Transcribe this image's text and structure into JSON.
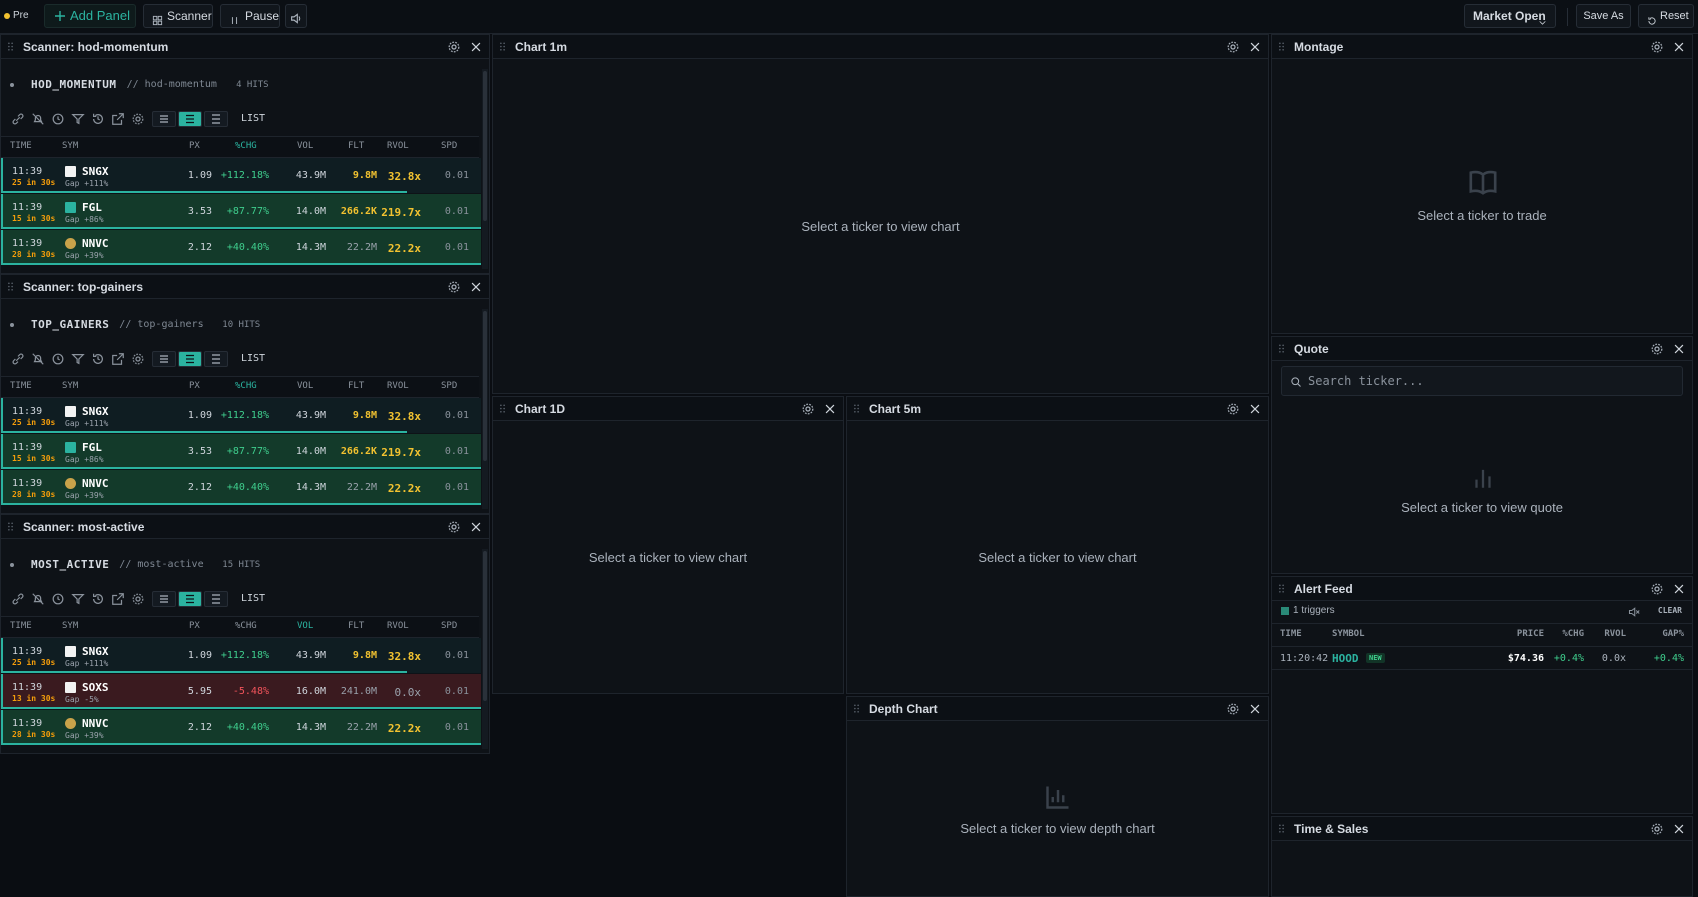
{
  "toolbar": {
    "status": "Pre",
    "add_panel": "Add Panel",
    "scanner": "Scanner",
    "pause": "Pause",
    "market": "Market Open",
    "save_as": "Save As",
    "reset": "Reset"
  },
  "scanners": [
    {
      "title": "Scanner: hod-momentum",
      "name": "HOD_MOMENTUM",
      "slug": "// hod-momentum",
      "hits": "4 HITS",
      "view": "LIST",
      "sort_index": 3,
      "columns": [
        "TIME",
        "SYM",
        "PX",
        "%CHG",
        "VOL",
        "FLT",
        "RVOL",
        "SPD"
      ],
      "rows": [
        {
          "tone": "new",
          "time": "11:39",
          "alert": "25 in 30s",
          "sym": "SNGX",
          "sub": "Gap +111%",
          "cells": [
            "1.09",
            "+112.18%",
            "43.9M",
            "9.8M",
            "32.8x",
            "0.01"
          ]
        },
        {
          "tone": "up",
          "time": "11:39",
          "alert": "15 in 30s",
          "sym": "FGL",
          "sub": "Gap +86%",
          "cells": [
            "3.53",
            "+87.77%",
            "14.0M",
            "266.2K",
            "219.7x",
            "0.01"
          ]
        },
        {
          "tone": "up",
          "time": "11:39",
          "alert": "28 in 30s",
          "sym": "NNVC",
          "sub": "Gap +39%",
          "cells": [
            "2.12",
            "+40.40%",
            "14.3M",
            "22.2M",
            "22.2x",
            "0.01"
          ]
        }
      ]
    },
    {
      "title": "Scanner: top-gainers",
      "name": "TOP_GAINERS",
      "slug": "// top-gainers",
      "hits": "10 HITS",
      "view": "LIST",
      "sort_index": 3,
      "columns": [
        "TIME",
        "SYM",
        "PX",
        "%CHG",
        "VOL",
        "FLT",
        "RVOL",
        "SPD"
      ],
      "rows": [
        {
          "tone": "new",
          "time": "11:39",
          "alert": "25 in 30s",
          "sym": "SNGX",
          "sub": "Gap +111%",
          "cells": [
            "1.09",
            "+112.18%",
            "43.9M",
            "9.8M",
            "32.8x",
            "0.01"
          ]
        },
        {
          "tone": "up",
          "time": "11:39",
          "alert": "15 in 30s",
          "sym": "FGL",
          "sub": "Gap +86%",
          "cells": [
            "3.53",
            "+87.77%",
            "14.0M",
            "266.2K",
            "219.7x",
            "0.01"
          ]
        },
        {
          "tone": "up",
          "time": "11:39",
          "alert": "28 in 30s",
          "sym": "NNVC",
          "sub": "Gap +39%",
          "cells": [
            "2.12",
            "+40.40%",
            "14.3M",
            "22.2M",
            "22.2x",
            "0.01"
          ]
        }
      ]
    },
    {
      "title": "Scanner: most-active",
      "name": "MOST_ACTIVE",
      "slug": "// most-active",
      "hits": "15 HITS",
      "view": "LIST",
      "sort_index": 4,
      "columns": [
        "TIME",
        "SYM",
        "PX",
        "%CHG",
        "VOL",
        "FLT",
        "RVOL",
        "SPD"
      ],
      "rows": [
        {
          "tone": "new",
          "time": "11:39",
          "alert": "25 in 30s",
          "sym": "SNGX",
          "sub": "Gap +111%",
          "cells": [
            "1.09",
            "+112.18%",
            "43.9M",
            "9.8M",
            "32.8x",
            "0.01"
          ]
        },
        {
          "tone": "down",
          "time": "11:39",
          "alert": "13 in 30s",
          "sym": "SOXS",
          "sub": "Gap -5%",
          "cells": [
            "5.95",
            "-5.48%",
            "16.0M",
            "241.0M",
            "0.0x",
            "0.01"
          ]
        },
        {
          "tone": "up",
          "time": "11:39",
          "alert": "28 in 30s",
          "sym": "NNVC",
          "sub": "Gap +39%",
          "cells": [
            "2.12",
            "+40.40%",
            "14.3M",
            "22.2M",
            "22.2x",
            "0.01"
          ]
        }
      ]
    }
  ],
  "charts": [
    {
      "title": "Chart 1m",
      "message": "Select a ticker to view chart"
    },
    {
      "title": "Chart 1D",
      "message": "Select a ticker to view chart"
    },
    {
      "title": "Chart 5m",
      "message": "Select a ticker to view chart"
    },
    {
      "title": "Depth Chart",
      "message": "Select a ticker to view depth chart"
    }
  ],
  "montage": {
    "title": "Montage",
    "message": "Select a ticker to trade"
  },
  "quote": {
    "title": "Quote",
    "placeholder": "Search ticker...",
    "message": "Select a ticker to view quote"
  },
  "alert_feed": {
    "title": "Alert Feed",
    "triggers": "1 triggers",
    "clear": "CLEAR",
    "columns": [
      "TIME",
      "SYMBOL",
      "PRICE",
      "%CHG",
      "RVOL",
      "GAP%"
    ],
    "rows": [
      {
        "time": "11:20:42",
        "symbol": "HOOD",
        "badge": "NEW",
        "price": "$74.36",
        "chg": "+0.4%",
        "rvol": "0.0x",
        "gap": "+0.4%"
      }
    ]
  },
  "time_sales": {
    "title": "Time & Sales"
  }
}
